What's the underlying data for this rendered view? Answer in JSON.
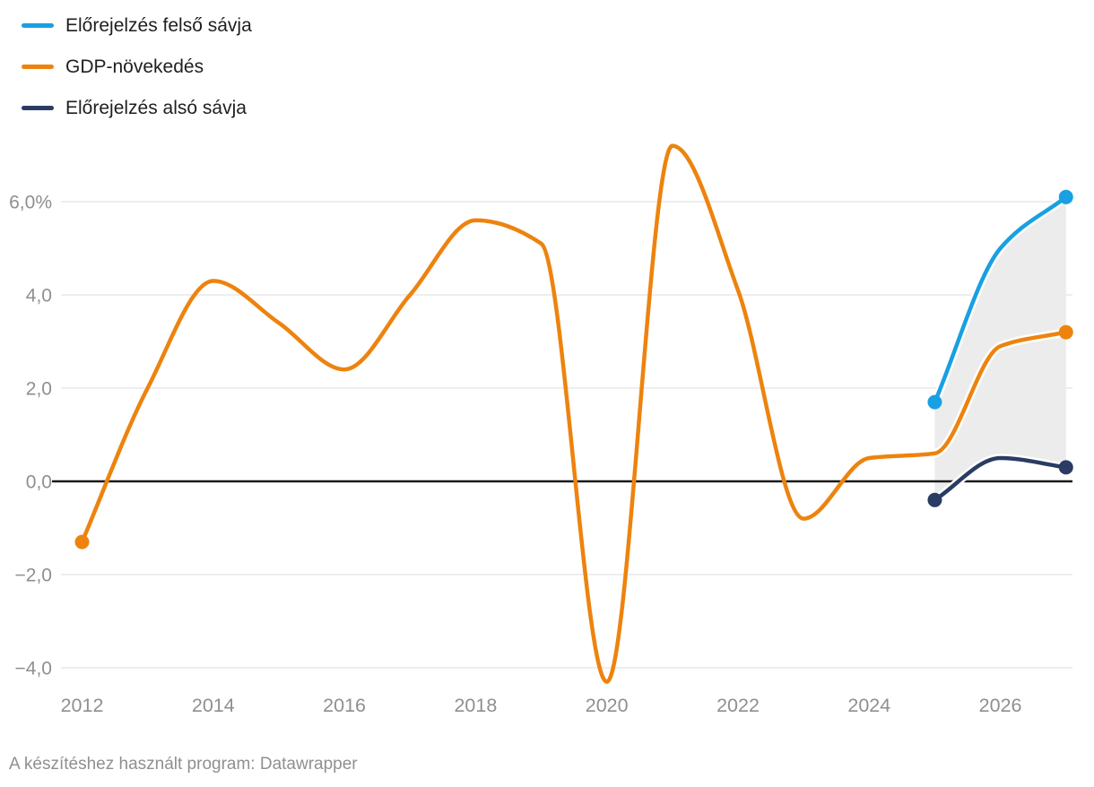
{
  "legend": [
    {
      "label": "Előrejelzés felső sávja",
      "color": "#18a0e2"
    },
    {
      "label": "GDP-növekedés",
      "color": "#ed830e"
    },
    {
      "label": "Előrejelzés alsó sávja",
      "color": "#2a3c63"
    }
  ],
  "footer": "A készítéshez használt program: Datawrapper",
  "chart_data": {
    "type": "line",
    "unit": "%",
    "grid": "horizontal",
    "legend_position": "top-left",
    "xlim": [
      2011.7,
      2027.15
    ],
    "ylim": [
      -4.6,
      7.4
    ],
    "y_axis": {
      "ticks": [
        {
          "value": 6,
          "label": "6,0%"
        },
        {
          "value": 4,
          "label": "4,0"
        },
        {
          "value": 2,
          "label": "2,0"
        },
        {
          "value": 0,
          "label": "0,0"
        },
        {
          "value": -2,
          "label": "−2,0"
        },
        {
          "value": -4,
          "label": "−4,0"
        }
      ]
    },
    "x_axis": {
      "ticks": [
        {
          "value": 2012,
          "label": "2012"
        },
        {
          "value": 2014,
          "label": "2014"
        },
        {
          "value": 2016,
          "label": "2016"
        },
        {
          "value": 2018,
          "label": "2018"
        },
        {
          "value": 2020,
          "label": "2020"
        },
        {
          "value": 2022,
          "label": "2022"
        },
        {
          "value": 2024,
          "label": "2024"
        },
        {
          "value": 2026,
          "label": "2026"
        }
      ]
    },
    "series": [
      {
        "id": "forecast-upper",
        "name": "Előrejelzés felső sávja",
        "color": "#18a0e2",
        "x": [
          2025,
          2026,
          2027
        ],
        "values": [
          1.7,
          5.0,
          6.1
        ],
        "dots": "ends"
      },
      {
        "id": "gdp-growth",
        "name": "GDP-növekedés",
        "color": "#ed830e",
        "x": [
          2012,
          2013,
          2014,
          2015,
          2016,
          2017,
          2018,
          2019,
          2020,
          2021,
          2022,
          2023,
          2024,
          2025,
          2026,
          2027
        ],
        "values": [
          -1.3,
          2.0,
          4.3,
          3.4,
          2.4,
          4.0,
          5.6,
          5.1,
          -4.3,
          7.2,
          4.1,
          -0.8,
          0.5,
          0.6,
          2.9,
          3.2
        ],
        "dots": "ends"
      },
      {
        "id": "forecast-lower",
        "name": "Előrejelzés alsó sávja",
        "color": "#2a3c63",
        "x": [
          2025,
          2026,
          2027
        ],
        "values": [
          -0.4,
          0.5,
          0.3
        ],
        "dots": "ends"
      }
    ],
    "band": {
      "upper_series": "forecast-upper",
      "lower_series": "forecast-lower",
      "fill": "#ececec"
    },
    "styles": {
      "gridline_color": "#e8e8e8",
      "zero_line_color": "#191919",
      "tick_label_color": "#8f8f8f",
      "halo_color": "#ffffff"
    }
  }
}
